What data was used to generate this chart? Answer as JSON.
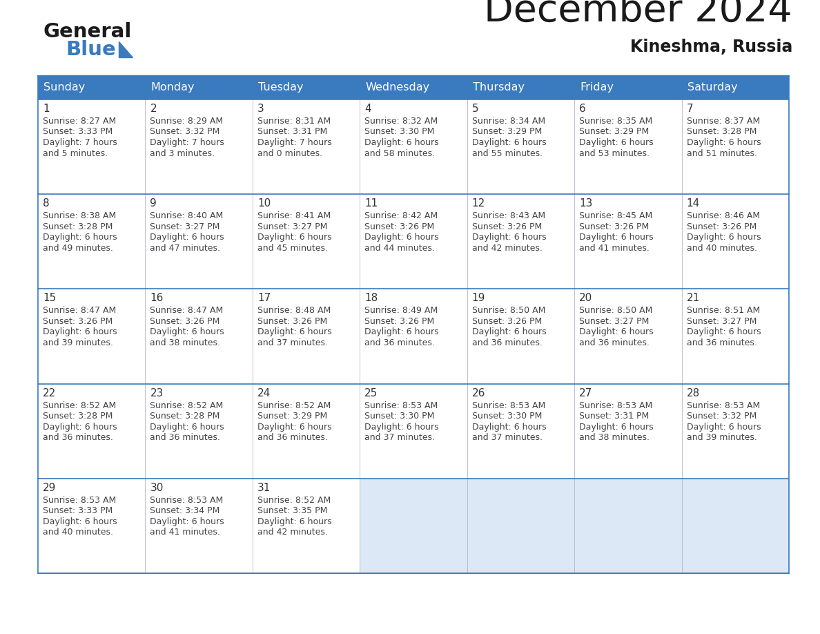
{
  "title": "December 2024",
  "subtitle": "Kineshma, Russia",
  "header_color": "#3a7abf",
  "header_text_color": "#ffffff",
  "text_color": "#444444",
  "days_of_week": [
    "Sunday",
    "Monday",
    "Tuesday",
    "Wednesday",
    "Thursday",
    "Friday",
    "Saturday"
  ],
  "calendar_data": [
    [
      {
        "day": "1",
        "sunrise": "8:27 AM",
        "sunset": "3:33 PM",
        "daylight_h": "7",
        "daylight_m": "5"
      },
      {
        "day": "2",
        "sunrise": "8:29 AM",
        "sunset": "3:32 PM",
        "daylight_h": "7",
        "daylight_m": "3"
      },
      {
        "day": "3",
        "sunrise": "8:31 AM",
        "sunset": "3:31 PM",
        "daylight_h": "7",
        "daylight_m": "0"
      },
      {
        "day": "4",
        "sunrise": "8:32 AM",
        "sunset": "3:30 PM",
        "daylight_h": "6",
        "daylight_m": "58"
      },
      {
        "day": "5",
        "sunrise": "8:34 AM",
        "sunset": "3:29 PM",
        "daylight_h": "6",
        "daylight_m": "55"
      },
      {
        "day": "6",
        "sunrise": "8:35 AM",
        "sunset": "3:29 PM",
        "daylight_h": "6",
        "daylight_m": "53"
      },
      {
        "day": "7",
        "sunrise": "8:37 AM",
        "sunset": "3:28 PM",
        "daylight_h": "6",
        "daylight_m": "51"
      }
    ],
    [
      {
        "day": "8",
        "sunrise": "8:38 AM",
        "sunset": "3:28 PM",
        "daylight_h": "6",
        "daylight_m": "49"
      },
      {
        "day": "9",
        "sunrise": "8:40 AM",
        "sunset": "3:27 PM",
        "daylight_h": "6",
        "daylight_m": "47"
      },
      {
        "day": "10",
        "sunrise": "8:41 AM",
        "sunset": "3:27 PM",
        "daylight_h": "6",
        "daylight_m": "45"
      },
      {
        "day": "11",
        "sunrise": "8:42 AM",
        "sunset": "3:26 PM",
        "daylight_h": "6",
        "daylight_m": "44"
      },
      {
        "day": "12",
        "sunrise": "8:43 AM",
        "sunset": "3:26 PM",
        "daylight_h": "6",
        "daylight_m": "42"
      },
      {
        "day": "13",
        "sunrise": "8:45 AM",
        "sunset": "3:26 PM",
        "daylight_h": "6",
        "daylight_m": "41"
      },
      {
        "day": "14",
        "sunrise": "8:46 AM",
        "sunset": "3:26 PM",
        "daylight_h": "6",
        "daylight_m": "40"
      }
    ],
    [
      {
        "day": "15",
        "sunrise": "8:47 AM",
        "sunset": "3:26 PM",
        "daylight_h": "6",
        "daylight_m": "39"
      },
      {
        "day": "16",
        "sunrise": "8:47 AM",
        "sunset": "3:26 PM",
        "daylight_h": "6",
        "daylight_m": "38"
      },
      {
        "day": "17",
        "sunrise": "8:48 AM",
        "sunset": "3:26 PM",
        "daylight_h": "6",
        "daylight_m": "37"
      },
      {
        "day": "18",
        "sunrise": "8:49 AM",
        "sunset": "3:26 PM",
        "daylight_h": "6",
        "daylight_m": "36"
      },
      {
        "day": "19",
        "sunrise": "8:50 AM",
        "sunset": "3:26 PM",
        "daylight_h": "6",
        "daylight_m": "36"
      },
      {
        "day": "20",
        "sunrise": "8:50 AM",
        "sunset": "3:27 PM",
        "daylight_h": "6",
        "daylight_m": "36"
      },
      {
        "day": "21",
        "sunrise": "8:51 AM",
        "sunset": "3:27 PM",
        "daylight_h": "6",
        "daylight_m": "36"
      }
    ],
    [
      {
        "day": "22",
        "sunrise": "8:52 AM",
        "sunset": "3:28 PM",
        "daylight_h": "6",
        "daylight_m": "36"
      },
      {
        "day": "23",
        "sunrise": "8:52 AM",
        "sunset": "3:28 PM",
        "daylight_h": "6",
        "daylight_m": "36"
      },
      {
        "day": "24",
        "sunrise": "8:52 AM",
        "sunset": "3:29 PM",
        "daylight_h": "6",
        "daylight_m": "36"
      },
      {
        "day": "25",
        "sunrise": "8:53 AM",
        "sunset": "3:30 PM",
        "daylight_h": "6",
        "daylight_m": "37"
      },
      {
        "day": "26",
        "sunrise": "8:53 AM",
        "sunset": "3:30 PM",
        "daylight_h": "6",
        "daylight_m": "37"
      },
      {
        "day": "27",
        "sunrise": "8:53 AM",
        "sunset": "3:31 PM",
        "daylight_h": "6",
        "daylight_m": "38"
      },
      {
        "day": "28",
        "sunrise": "8:53 AM",
        "sunset": "3:32 PM",
        "daylight_h": "6",
        "daylight_m": "39"
      }
    ],
    [
      {
        "day": "29",
        "sunrise": "8:53 AM",
        "sunset": "3:33 PM",
        "daylight_h": "6",
        "daylight_m": "40"
      },
      {
        "day": "30",
        "sunrise": "8:53 AM",
        "sunset": "3:34 PM",
        "daylight_h": "6",
        "daylight_m": "41"
      },
      {
        "day": "31",
        "sunrise": "8:52 AM",
        "sunset": "3:35 PM",
        "daylight_h": "6",
        "daylight_m": "42"
      },
      null,
      null,
      null,
      null
    ]
  ]
}
